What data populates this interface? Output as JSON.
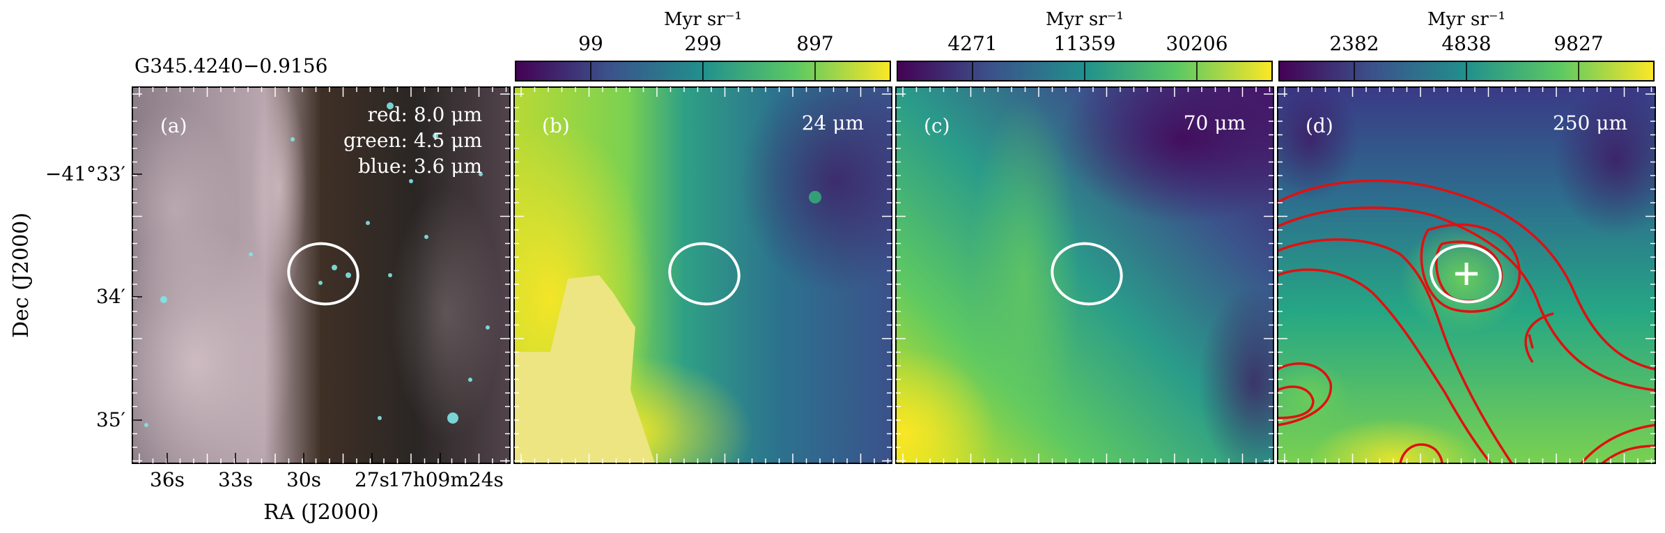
{
  "figure": {
    "source_title": "G345.4240−0.9156",
    "ylabel": "Dec (J2000)",
    "xlabel": "RA (J2000)",
    "dec_ticks": [
      "−41°33′",
      "34′",
      "35′"
    ],
    "ra_ticks": [
      "36s",
      "33s",
      "30s",
      "27s",
      "17h09m24s"
    ]
  },
  "panels": [
    {
      "id": "a",
      "letter": "(a)",
      "band_lines": [
        "red: 8.0 μm",
        "green: 4.5 μm",
        "blue: 3.6 μm"
      ],
      "has_colorbar": false
    },
    {
      "id": "b",
      "letter": "(b)",
      "band": "24 μm",
      "has_colorbar": true,
      "colorbar": {
        "unit": "Myr sr⁻¹",
        "ticks": [
          "99",
          "299",
          "897"
        ],
        "cmap": "viridis"
      }
    },
    {
      "id": "c",
      "letter": "(c)",
      "band": "70 μm",
      "has_colorbar": true,
      "colorbar": {
        "unit": "Myr sr⁻¹",
        "ticks": [
          "4271",
          "11359",
          "30206"
        ],
        "cmap": "viridis"
      }
    },
    {
      "id": "d",
      "letter": "(d)",
      "band": "250 μm",
      "has_colorbar": true,
      "colorbar": {
        "unit": "Myr sr⁻¹",
        "ticks": [
          "2382",
          "4838",
          "9827"
        ],
        "cmap": "viridis"
      },
      "contour_color": "#e01010",
      "marker": "cross"
    }
  ],
  "colors": {
    "viridis": [
      "#440154",
      "#3b528b",
      "#21908d",
      "#5dc963",
      "#fde725"
    ],
    "ellipse": "#ffffff"
  }
}
